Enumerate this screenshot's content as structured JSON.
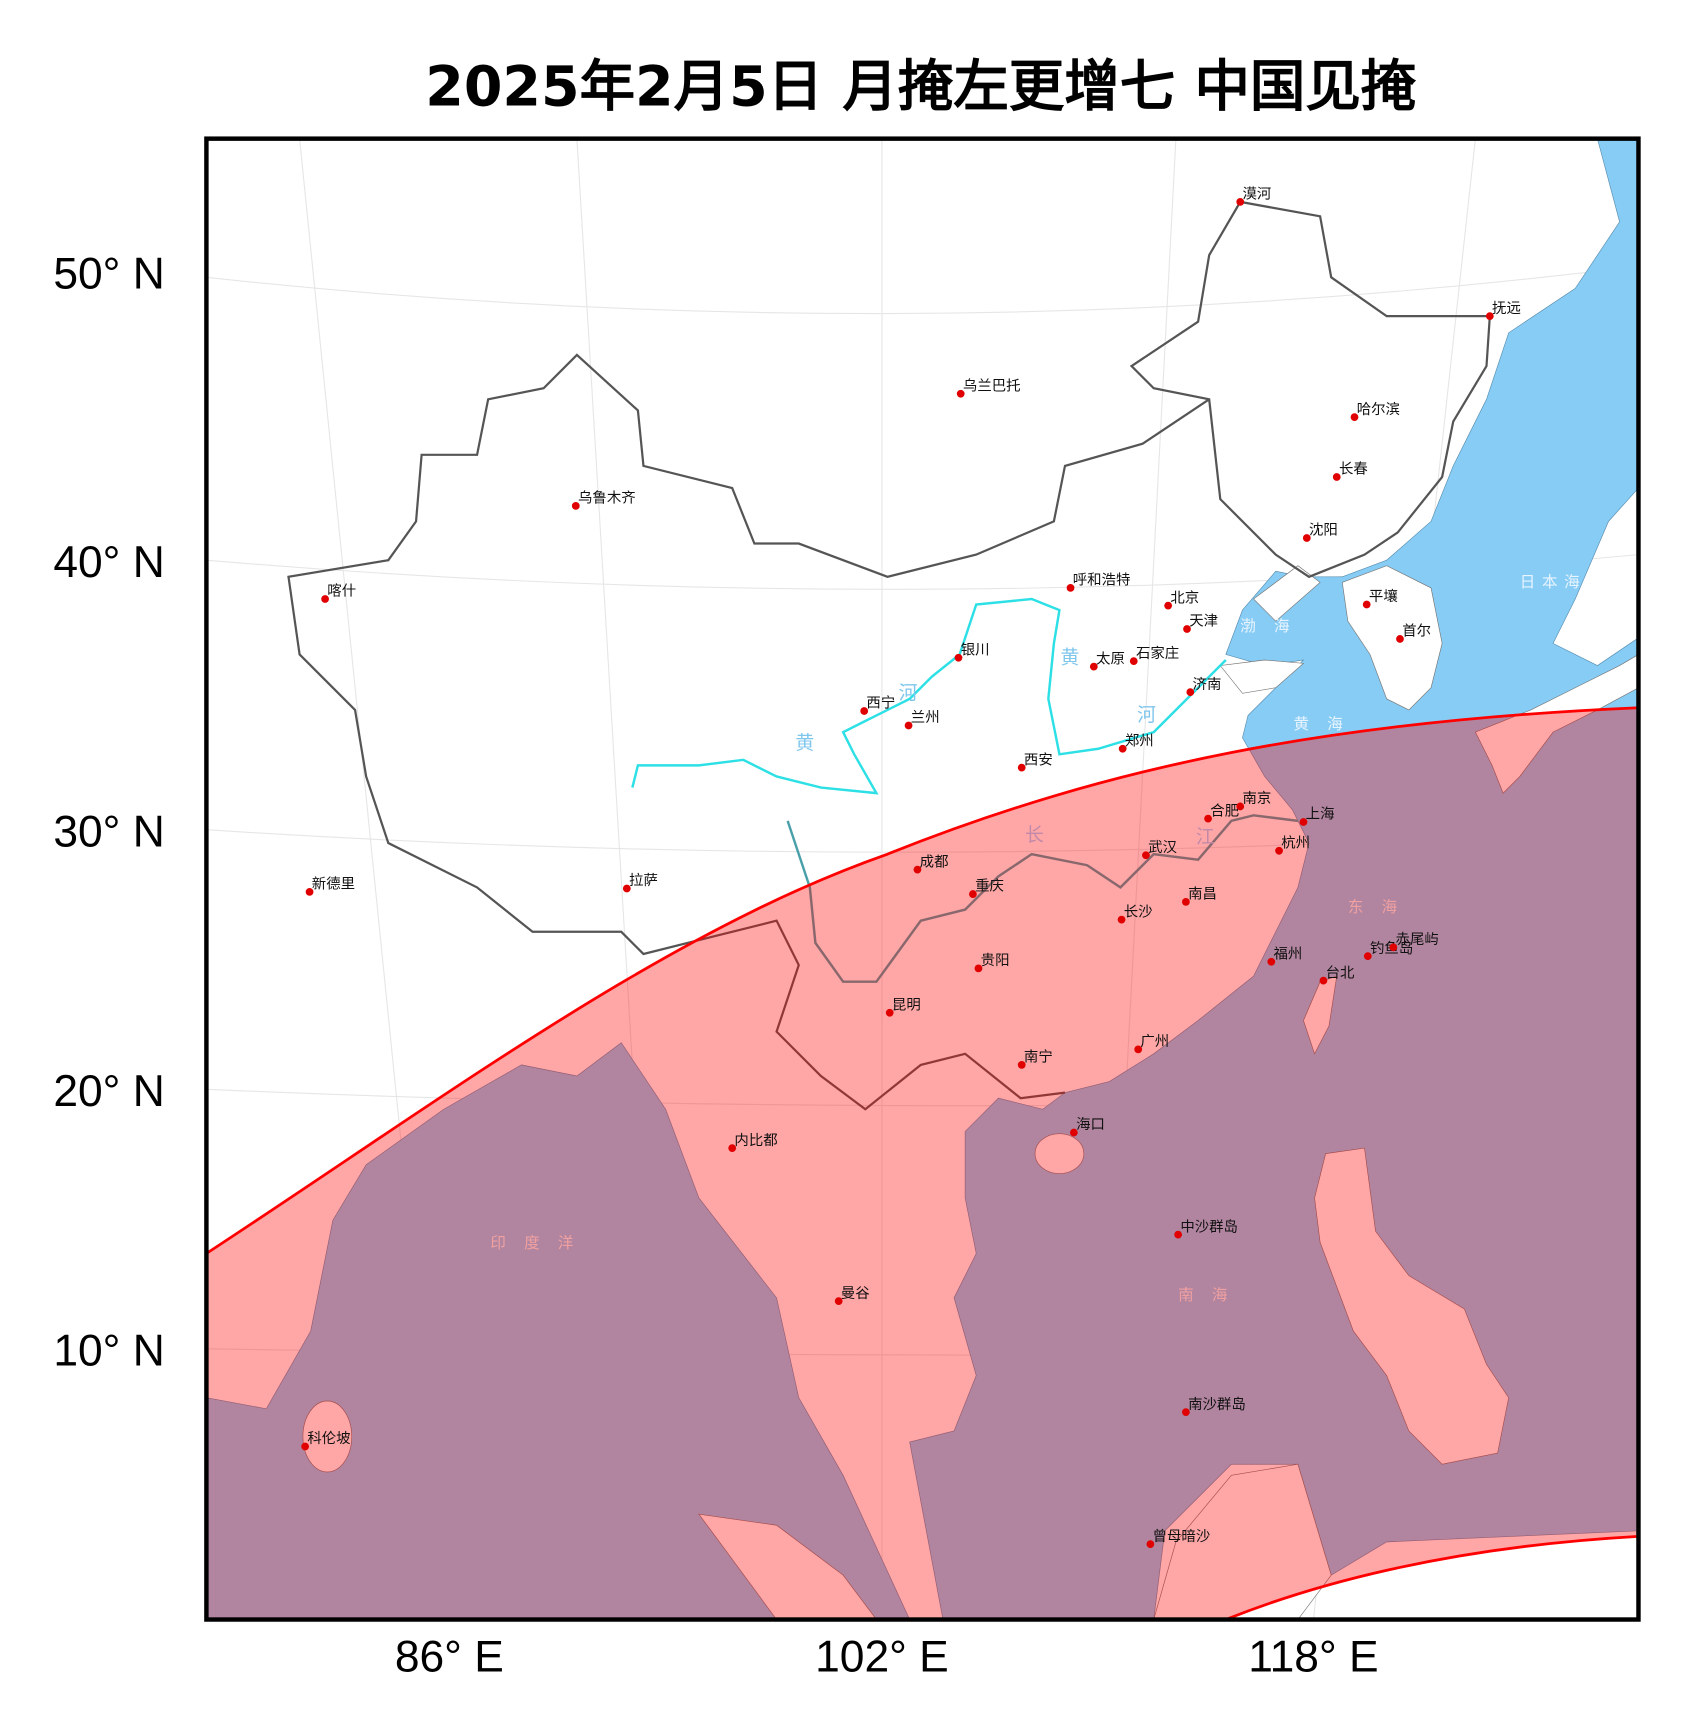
{
  "title": "2025年2月5日 月掩左更增七 中国见掩",
  "colors": {
    "land": "#ffffff",
    "sea": "#87ccf5",
    "visible_zone_overlay": "#ff0000",
    "zone_boundary": "#ff0000",
    "river": "#2de0e6",
    "city_dot": "#e00000"
  },
  "axes": {
    "lat_labels": [
      "50° N",
      "40° N",
      "30° N",
      "20° N",
      "10° N"
    ],
    "lon_labels": [
      "86° E",
      "102° E",
      "118° E"
    ]
  },
  "cities": [
    {
      "name": "漠河"
    },
    {
      "name": "抚远"
    },
    {
      "name": "乌兰巴托"
    },
    {
      "name": "哈尔滨"
    },
    {
      "name": "长春"
    },
    {
      "name": "乌鲁木齐"
    },
    {
      "name": "沈阳"
    },
    {
      "name": "喀什"
    },
    {
      "name": "呼和浩特"
    },
    {
      "name": "北京"
    },
    {
      "name": "平壤"
    },
    {
      "name": "天津"
    },
    {
      "name": "首尔"
    },
    {
      "name": "银川"
    },
    {
      "name": "太原"
    },
    {
      "name": "石家庄"
    },
    {
      "name": "济南"
    },
    {
      "name": "西宁"
    },
    {
      "name": "兰州"
    },
    {
      "name": "郑州"
    },
    {
      "name": "西安"
    },
    {
      "name": "合肥"
    },
    {
      "name": "南京"
    },
    {
      "name": "上海"
    },
    {
      "name": "成都"
    },
    {
      "name": "武汉"
    },
    {
      "name": "杭州"
    },
    {
      "name": "新德里"
    },
    {
      "name": "拉萨"
    },
    {
      "name": "重庆"
    },
    {
      "name": "南昌"
    },
    {
      "name": "长沙"
    },
    {
      "name": "福州"
    },
    {
      "name": "钓鱼岛"
    },
    {
      "name": "赤尾屿"
    },
    {
      "name": "台北"
    },
    {
      "name": "贵阳"
    },
    {
      "name": "昆明"
    },
    {
      "name": "广州"
    },
    {
      "name": "南宁"
    },
    {
      "name": "海口"
    },
    {
      "name": "内比都"
    },
    {
      "name": "中沙群岛"
    },
    {
      "name": "曼谷"
    },
    {
      "name": "科伦坡"
    },
    {
      "name": "南沙群岛"
    },
    {
      "name": "曾母暗沙"
    }
  ],
  "seas": [
    {
      "name": "日本海"
    },
    {
      "name": "渤 海"
    },
    {
      "name": "黄 海"
    },
    {
      "name": "东 海"
    },
    {
      "name": "南 海"
    },
    {
      "name": "印 度 洋"
    }
  ],
  "rivers": [
    {
      "name": "黄"
    },
    {
      "name": "河"
    },
    {
      "name": "黄"
    },
    {
      "name": "河"
    },
    {
      "name": "长"
    },
    {
      "name": "江"
    }
  ]
}
